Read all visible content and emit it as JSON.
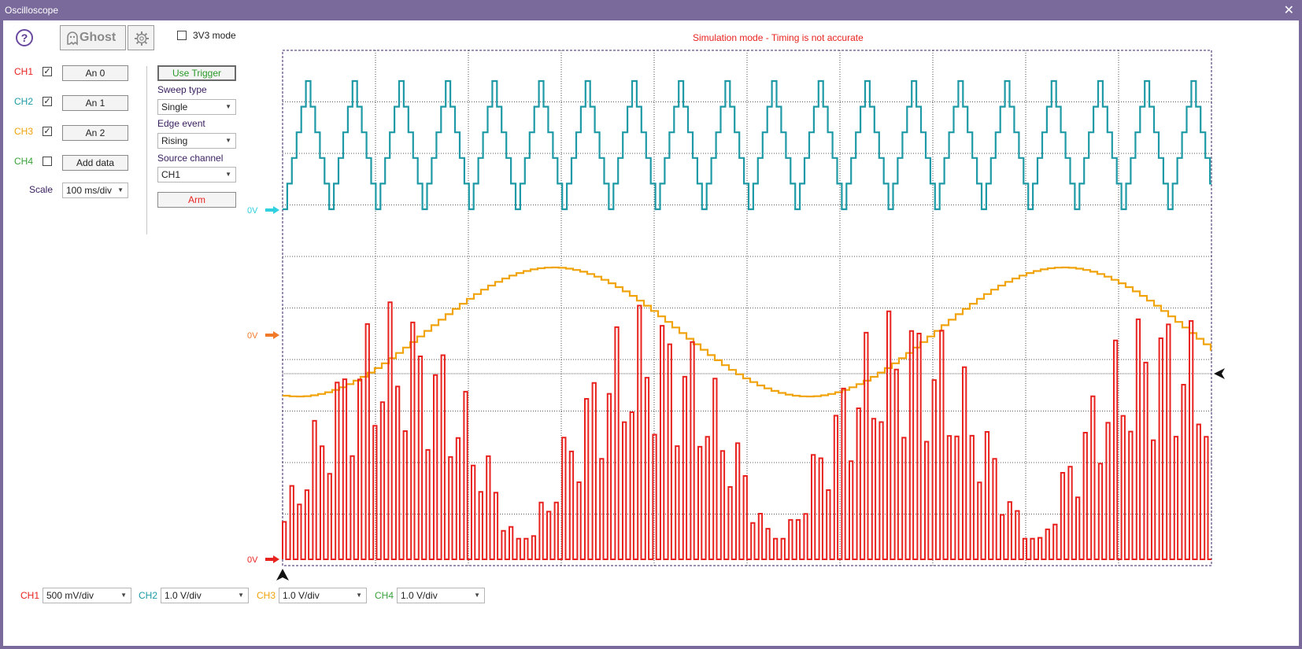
{
  "window": {
    "title": "Oscilloscope"
  },
  "toolbar": {
    "help_glyph": "?",
    "ghost_label": "Ghost",
    "mode_3v3_label": "3V3 mode",
    "mode_3v3_checked": false
  },
  "banner": "Simulation mode - Timing is not accurate",
  "channels": [
    {
      "name": "CH1",
      "color": "#e8231f",
      "enabled": true,
      "source": "An 0"
    },
    {
      "name": "CH2",
      "color": "#1e9aa6",
      "enabled": true,
      "source": "An 1"
    },
    {
      "name": "CH3",
      "color": "#f0a30a",
      "enabled": true,
      "source": "An 2"
    },
    {
      "name": "CH4",
      "color": "#3aa13a",
      "enabled": false,
      "source": "Add data"
    }
  ],
  "scale": {
    "label": "Scale",
    "value": "100 ms/div"
  },
  "trigger": {
    "use_trigger_label": "Use Trigger",
    "sweep_type_label": "Sweep type",
    "sweep_type_value": "Single",
    "edge_event_label": "Edge event",
    "edge_event_value": "Rising",
    "source_channel_label": "Source channel",
    "source_channel_value": "CH1",
    "arm_label": "Arm"
  },
  "marker_label": "0V",
  "bottom": [
    {
      "name": "CH1",
      "value": "500 mV/div"
    },
    {
      "name": "CH2",
      "value": "1.0 V/div"
    },
    {
      "name": "CH3",
      "value": "1.0 V/div"
    },
    {
      "name": "CH4",
      "value": "1.0 V/div"
    }
  ],
  "colors": {
    "frame": "#7a6a9c",
    "grid": "#222222",
    "cyan_marker": "#2fd0e0",
    "orange_marker": "#f07a2a",
    "red_marker": "#e8231f"
  }
}
